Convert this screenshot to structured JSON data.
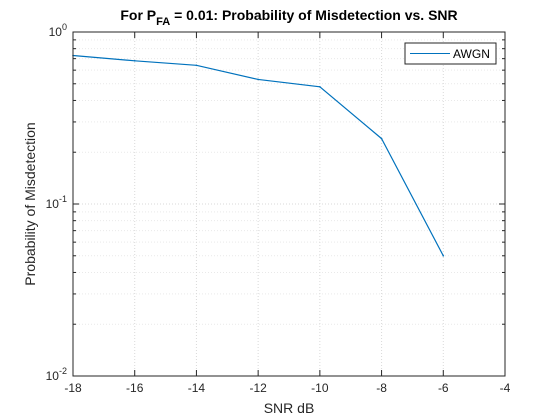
{
  "chart_data": {
    "type": "line",
    "title": {
      "prefix": "For P",
      "subscript": "FA",
      "suffix": " = 0.01: Probability of Misdetection vs. SNR"
    },
    "xlabel": "SNR dB",
    "ylabel": "Probability of Misdetection",
    "xlim": [
      -18,
      -4
    ],
    "ylim": [
      0.01,
      1
    ],
    "yscale": "log",
    "grid": true,
    "minor_grid": true,
    "legend_position": "top-right",
    "x_ticks": [
      -18,
      -16,
      -14,
      -12,
      -10,
      -8,
      -6,
      -4
    ],
    "x_tick_labels": [
      "-18",
      "-16",
      "-14",
      "-12",
      "-10",
      "-8",
      "-6",
      "-4"
    ],
    "y_ticks": [
      {
        "value": 1,
        "base": "10",
        "exp": "0"
      },
      {
        "value": 0.1,
        "base": "10",
        "exp": "-1"
      },
      {
        "value": 0.01,
        "base": "10",
        "exp": "-2"
      }
    ],
    "series": [
      {
        "name": "AWGN",
        "color": "#0072BD",
        "x": [
          -18,
          -16,
          -14,
          -12,
          -10,
          -8,
          -6
        ],
        "y": [
          0.73,
          0.68,
          0.64,
          0.53,
          0.48,
          0.24,
          0.05
        ]
      }
    ]
  }
}
